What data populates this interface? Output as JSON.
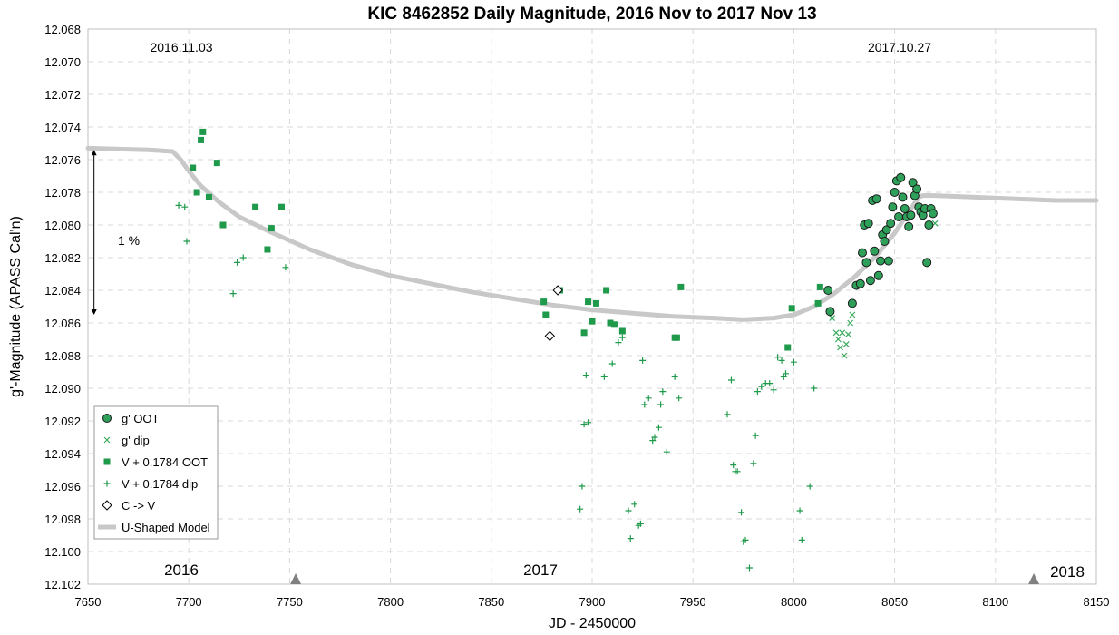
{
  "chart_data": {
    "type": "scatter",
    "title": "KIC 8462852 Daily Magnitude, 2016 Nov to 2017 Nov 13",
    "xlabel": "JD - 2450000",
    "ylabel": "g'-Magnitude (APASS Cal'n)",
    "xlim": [
      7650,
      8150
    ],
    "ylim": [
      12.068,
      12.102
    ],
    "y_inverted": true,
    "grid": true,
    "legend_position": "bottom-left",
    "x_ticks": [
      "7650",
      "7700",
      "7750",
      "7800",
      "7850",
      "7900",
      "7950",
      "8000",
      "8050",
      "8100",
      "8150"
    ],
    "y_ticks": [
      "12.068",
      "12.070",
      "12.072",
      "12.074",
      "12.076",
      "12.078",
      "12.080",
      "12.082",
      "12.084",
      "12.086",
      "12.088",
      "12.090",
      "12.092",
      "12.094",
      "12.096",
      "12.098",
      "12.100",
      "12.102"
    ],
    "annotations": {
      "date_start": "2016.11.03",
      "date_end": "2017.10.27",
      "scale_label": "1 %",
      "year_2016": "2016",
      "year_2017": "2017",
      "year_2018": "2018"
    },
    "year_markers": [
      7753,
      8119
    ],
    "scale_bar": {
      "x": 7653,
      "y_top": 12.0754,
      "y_bottom": 12.0855
    },
    "colors": {
      "green_dark": "#1f9a4b",
      "green_circle": "#2ea05a",
      "model": "#c8c8c8",
      "grid": "#d9d9d9",
      "marker_gray": "#808080"
    },
    "series": [
      {
        "name": "g' OOT",
        "marker": "circle",
        "x": [
          8018,
          8017,
          8029,
          8031,
          8033,
          8034,
          8035,
          8036,
          8037,
          8038,
          8039,
          8040,
          8041,
          8042,
          8043,
          8044,
          8045,
          8046,
          8047,
          8048,
          8049,
          8050,
          8051,
          8052,
          8053,
          8054,
          8055,
          8056,
          8057,
          8058,
          8059,
          8060,
          8061,
          8062,
          8063,
          8064,
          8065,
          8066,
          8067,
          8068,
          8069
        ],
        "y": [
          12.0853,
          12.084,
          12.0848,
          12.0837,
          12.0836,
          12.0817,
          12.08,
          12.0823,
          12.0799,
          12.0834,
          12.0785,
          12.0816,
          12.0784,
          12.0831,
          12.0822,
          12.0806,
          12.081,
          12.0803,
          12.0822,
          12.0799,
          12.0789,
          12.078,
          12.0773,
          12.0795,
          12.0771,
          12.0783,
          12.079,
          12.0795,
          12.0801,
          12.0794,
          12.0774,
          12.0782,
          12.0778,
          12.0789,
          12.0792,
          12.0794,
          12.079,
          12.0823,
          12.08,
          12.079,
          12.0793
        ]
      },
      {
        "name": "g' dip",
        "marker": "x",
        "x": [
          8019,
          8021,
          8022,
          8023,
          8024,
          8025,
          8026,
          8027,
          8028,
          8029,
          8070
        ],
        "y": [
          12.0857,
          12.0866,
          12.087,
          12.0875,
          12.0866,
          12.088,
          12.0873,
          12.0867,
          12.086,
          12.0855,
          12.0799
        ]
      },
      {
        "name": "V + 0.1784 OOT",
        "marker": "square",
        "x": [
          7702,
          7704,
          7706,
          7707,
          7710,
          7714,
          7717,
          7733,
          7739,
          7741,
          7746,
          7876,
          7877,
          7884,
          7896,
          7898,
          7900,
          7902,
          7907,
          7909,
          7911,
          7915,
          7941,
          7942,
          7944,
          7997,
          7999,
          8012,
          8013
        ],
        "y": [
          12.0765,
          12.078,
          12.0748,
          12.0743,
          12.0783,
          12.0762,
          12.08,
          12.0789,
          12.0815,
          12.0802,
          12.0789,
          12.0847,
          12.0855,
          12.084,
          12.0866,
          12.0847,
          12.0859,
          12.0848,
          12.084,
          12.086,
          12.0861,
          12.0865,
          12.0869,
          12.0869,
          12.0838,
          12.0875,
          12.0851,
          12.0848,
          12.0838
        ]
      },
      {
        "name": "V + 0.1784 dip",
        "marker": "plus",
        "x": [
          7695,
          7698,
          7699,
          7722,
          7724,
          7727,
          7748,
          7894,
          7895,
          7896,
          7897,
          7898,
          7906,
          7910,
          7913,
          7915,
          7918,
          7919,
          7921,
          7923,
          7924,
          7925,
          7926,
          7928,
          7930,
          7931,
          7933,
          7934,
          7935,
          7937,
          7941,
          7943,
          7967,
          7969,
          7970,
          7971,
          7972,
          7974,
          7975,
          7976,
          7978,
          7980,
          7981,
          7982,
          7984,
          7986,
          7988,
          7990,
          7992,
          7994,
          7995,
          7996,
          8000,
          8003,
          8004,
          8008,
          8010
        ],
        "y": [
          12.0788,
          12.0789,
          12.081,
          12.0842,
          12.0823,
          12.082,
          12.0826,
          12.0974,
          12.096,
          12.0922,
          12.0892,
          12.0921,
          12.0893,
          12.0885,
          12.0872,
          12.0869,
          12.0975,
          12.0992,
          12.0971,
          12.0984,
          12.0983,
          12.0883,
          12.091,
          12.0906,
          12.0932,
          12.093,
          12.0924,
          12.091,
          12.0902,
          12.0939,
          12.0893,
          12.0906,
          12.0916,
          12.0895,
          12.0947,
          12.0951,
          12.0951,
          12.0976,
          12.0994,
          12.0993,
          12.101,
          12.0946,
          12.0929,
          12.0902,
          12.0899,
          12.0897,
          12.0897,
          12.0901,
          12.0881,
          12.0883,
          12.0893,
          12.0891,
          12.0884,
          12.0975,
          12.0993,
          12.096,
          12.09
        ]
      },
      {
        "name": "C -> V",
        "marker": "diamond",
        "x": [
          7879,
          7883
        ],
        "y": [
          12.0868,
          12.084
        ]
      },
      {
        "name": "U-Shaped Model",
        "marker": "line",
        "x": [
          7650,
          7680,
          7692,
          7696,
          7700,
          7706,
          7715,
          7725,
          7740,
          7760,
          7780,
          7800,
          7820,
          7840,
          7860,
          7880,
          7900,
          7920,
          7940,
          7960,
          7975,
          7990,
          8000,
          8010,
          8020,
          8030,
          8040,
          8050,
          8058,
          8062,
          8064,
          8070,
          8090,
          8110,
          8130,
          8150
        ],
        "y": [
          12.0753,
          12.0754,
          12.0755,
          12.076,
          12.0767,
          12.0776,
          12.0786,
          12.0795,
          12.0804,
          12.0815,
          12.0824,
          12.0831,
          12.0836,
          12.0841,
          12.0845,
          12.0849,
          12.0852,
          12.0854,
          12.0856,
          12.0857,
          12.0858,
          12.0857,
          12.0855,
          12.085,
          12.0842,
          12.0832,
          12.082,
          12.0805,
          12.079,
          12.0783,
          12.0782,
          12.0782,
          12.0783,
          12.0784,
          12.0785,
          12.0785
        ]
      }
    ]
  }
}
